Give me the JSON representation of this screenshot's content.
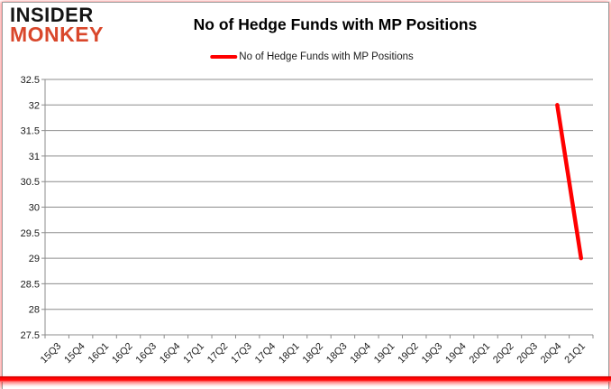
{
  "branding": {
    "logo_line1": "INSIDER",
    "logo_line2": "MONKEY",
    "logo_color_primary": "#141414",
    "logo_color_accent": "#d9472b"
  },
  "header": {
    "title": "No of Hedge Funds with MP Positions"
  },
  "legend": {
    "label": "No of Hedge Funds with MP Positions",
    "line_color": "#ff0000"
  },
  "chart_data": {
    "type": "line",
    "title": "No of Hedge Funds with MP Positions",
    "categories": [
      "15Q3",
      "15Q4",
      "16Q1",
      "16Q2",
      "16Q3",
      "16Q4",
      "17Q1",
      "17Q2",
      "17Q3",
      "17Q4",
      "18Q1",
      "18Q2",
      "18Q3",
      "18Q4",
      "19Q1",
      "19Q2",
      "19Q3",
      "19Q4",
      "20Q1",
      "20Q2",
      "20Q3",
      "20Q4",
      "21Q1"
    ],
    "series": [
      {
        "name": "No of Hedge Funds with MP Positions",
        "color": "#ff0000",
        "values": [
          null,
          null,
          null,
          null,
          null,
          null,
          null,
          null,
          null,
          null,
          null,
          null,
          null,
          null,
          null,
          null,
          null,
          null,
          null,
          null,
          null,
          32,
          29
        ]
      }
    ],
    "xlabel": "",
    "ylabel": "",
    "ylim": [
      27.5,
      32.5
    ],
    "yticks": [
      27.5,
      28,
      28.5,
      29,
      29.5,
      30,
      30.5,
      31,
      31.5,
      32,
      32.5
    ],
    "grid": true,
    "gridline_color": "#8c8c8c",
    "axis_color": "#8c8c8c",
    "tick_label_color": "#1a1a1a",
    "legend_position": "top",
    "x_label_rotation": -45
  }
}
